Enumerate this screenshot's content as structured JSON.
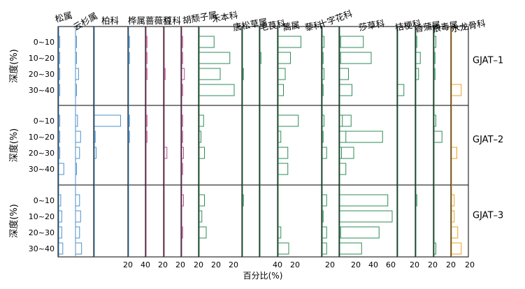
{
  "chart_data": {
    "type": "bar",
    "orientation": "horizontal",
    "xlabel": "百分比(%)",
    "ylabel": "深度(%)",
    "depth_categories": [
      "0~10",
      "10~20",
      "20~30",
      "30~40"
    ],
    "sites": [
      "GJAT–1",
      "GJAT–2",
      "GJAT–3"
    ],
    "axis_tick_labels": [
      "20",
      "40",
      "20",
      "20",
      "20",
      "20",
      "20",
      "40",
      "20",
      "20",
      "20",
      "40",
      "60",
      "20",
      "20",
      "20",
      "20"
    ],
    "taxa": [
      {
        "name": "松属",
        "color": "#4a90c8",
        "values": [
          [
            1,
            1,
            1,
            1
          ],
          [
            1,
            1,
            1,
            5
          ],
          [
            2,
            3,
            3,
            4
          ]
        ]
      },
      {
        "name": "云杉属",
        "color": "#4a90c8",
        "values": [
          [
            1,
            1,
            3,
            1
          ],
          [
            2,
            5,
            4,
            1
          ],
          [
            4,
            5,
            4,
            6
          ]
        ]
      },
      {
        "name": "柏科",
        "color": "#4a90c8",
        "values": [
          [
            0,
            0,
            0,
            0
          ],
          [
            30,
            1,
            2,
            0
          ],
          [
            0,
            0,
            0,
            0
          ]
        ]
      },
      {
        "name": "桦属",
        "color": "#4a90c8",
        "values": [
          [
            1,
            1,
            0,
            0
          ],
          [
            1,
            1,
            0,
            0
          ],
          [
            0,
            0,
            0,
            0
          ]
        ]
      },
      {
        "name": "蔷薇科",
        "color": "#b04a8a",
        "values": [
          [
            1,
            1,
            1,
            0
          ],
          [
            1,
            1,
            0,
            0
          ],
          [
            0,
            0,
            0,
            0
          ]
        ]
      },
      {
        "name": "豆科",
        "color": "#b04a8a",
        "values": [
          [
            0,
            0,
            1,
            0
          ],
          [
            0,
            0,
            3,
            0
          ],
          [
            0,
            0,
            0,
            0
          ]
        ]
      },
      {
        "name": "胡颓子属",
        "color": "#b04a8a",
        "values": [
          [
            1,
            1,
            3,
            1
          ],
          [
            1,
            1,
            2,
            1
          ],
          [
            2,
            0,
            1,
            0
          ]
        ]
      },
      {
        "name": "禾本科",
        "color": "#2e8b57",
        "values": [
          [
            17,
            35,
            24,
            40
          ],
          [
            5,
            2,
            6,
            0
          ],
          [
            6,
            3,
            8,
            0
          ]
        ]
      },
      {
        "name": "唐松草属",
        "color": "#2e8b57",
        "values": [
          [
            0,
            0,
            1,
            0
          ],
          [
            0,
            0,
            0,
            0
          ],
          [
            1,
            0,
            0,
            0
          ]
        ]
      },
      {
        "name": "毛茛科",
        "color": "#2e8b57",
        "values": [
          [
            0,
            1,
            0,
            0
          ],
          [
            0,
            0,
            0,
            0
          ],
          [
            0,
            0,
            0,
            0
          ]
        ]
      },
      {
        "name": "蒿属",
        "color": "#2e8b57",
        "values": [
          [
            26,
            14,
            8,
            6
          ],
          [
            23,
            3,
            11,
            11
          ],
          [
            0,
            0,
            3,
            12
          ]
        ]
      },
      {
        "name": "藜科",
        "color": "#2e8b57",
        "values": [
          [
            2,
            1,
            2,
            1
          ],
          [
            2,
            1,
            5,
            0
          ],
          [
            5,
            1,
            5,
            5
          ]
        ]
      },
      {
        "name": "十字花科",
        "color": "#2e8b57",
        "values": [
          [
            1,
            1,
            0,
            0
          ],
          [
            3,
            7,
            2,
            0
          ],
          [
            0,
            0,
            1,
            0
          ]
        ]
      },
      {
        "name": "莎草科",
        "color": "#2e8b57",
        "values": [
          [
            27,
            36,
            10,
            14
          ],
          [
            13,
            49,
            16,
            7
          ],
          [
            55,
            60,
            45,
            25
          ]
        ]
      },
      {
        "name": "桔梗科",
        "color": "#2e8b57",
        "values": [
          [
            0,
            0,
            0,
            7
          ],
          [
            0,
            0,
            0,
            0
          ],
          [
            0,
            0,
            0,
            0
          ]
        ]
      },
      {
        "name": "香蒲属",
        "color": "#2e8b57",
        "values": [
          [
            1,
            5,
            3,
            0
          ],
          [
            0,
            0,
            0,
            0
          ],
          [
            1,
            0,
            0,
            0
          ]
        ]
      },
      {
        "name": "狼毒属",
        "color": "#2e8b57",
        "values": [
          [
            2,
            1,
            1,
            0
          ],
          [
            2,
            9,
            0,
            0
          ],
          [
            0,
            0,
            0,
            2
          ]
        ]
      },
      {
        "name": "水龙骨科",
        "color": "#e8a020",
        "values": [
          [
            0,
            0,
            0,
            11
          ],
          [
            0,
            0,
            6,
            0
          ],
          [
            3,
            3,
            7,
            11
          ]
        ]
      }
    ]
  }
}
